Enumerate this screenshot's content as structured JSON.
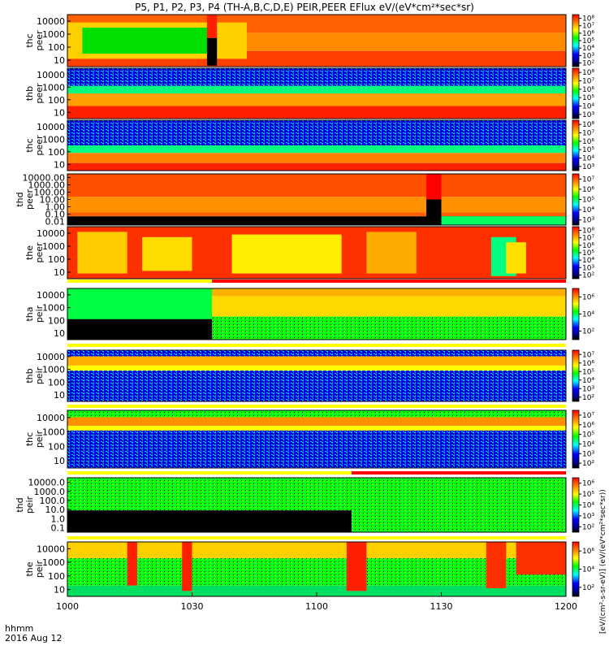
{
  "title": "P5, P1, P2, P3, P4 (TH-A,B,C,D,E) PEIR,PEER EFlux eV/(eV*cm²*sec*sr)",
  "footer": {
    "hhmm": "hhmm",
    "date": "2016 Aug 12"
  },
  "colorbar_unit": "[eV/(cm²-s-sr-eV)] (eV/(eV*cm²*sec*sr))",
  "colors": {
    "black": "#000000",
    "dark_blue": "#00008b",
    "blue": "#0000ff",
    "cyan": "#00ffff",
    "green": "#00ff00",
    "yellow": "#ffff00",
    "orange": "#ff8000",
    "red": "#ff0000",
    "bar_red": "#ff0000",
    "bar_yellow": "#ffff00"
  },
  "chart_data": {
    "type": "heatmap",
    "x_tick_labels": [
      "1000",
      "1030",
      "1100",
      "1130",
      "1200"
    ],
    "xlim": [
      "10:00",
      "12:00"
    ],
    "panels": [
      {
        "ylabel": [
          "thc",
          "peer"
        ],
        "y_ticks": [
          "10",
          "100",
          "1000",
          "10000"
        ],
        "colorbar_ticks": [
          "10²",
          "10³",
          "10⁴",
          "10⁵",
          "10⁶",
          "10⁷",
          "10⁸"
        ]
      },
      {
        "ylabel": [
          "thb",
          "peer"
        ],
        "y_ticks": [
          "10",
          "100",
          "1000",
          "10000"
        ],
        "colorbar_ticks": [
          "10³",
          "10⁴",
          "10⁵",
          "10⁶",
          "10⁷",
          "10⁸"
        ]
      },
      {
        "ylabel": [
          "thc",
          "peer"
        ],
        "y_ticks": [
          "10",
          "100",
          "1000",
          "10000"
        ],
        "colorbar_ticks": [
          "10³",
          "10⁴",
          "10⁵",
          "10⁶",
          "10⁷",
          "10⁸"
        ]
      },
      {
        "ylabel": [
          "thd",
          "peer"
        ],
        "y_ticks": [
          "0.01",
          "0.10",
          "1.00",
          "10.00",
          "100.00",
          "1000.00",
          "10000.00"
        ],
        "colorbar_ticks": [
          "10³",
          "10⁴",
          "10⁵",
          "10⁶",
          "10⁷"
        ]
      },
      {
        "ylabel": [
          "the",
          "peer"
        ],
        "y_ticks": [
          "10",
          "100",
          "1000",
          "10000"
        ],
        "colorbar_ticks": [
          "10²",
          "10³",
          "10⁴",
          "10⁵",
          "10⁶",
          "10⁷",
          "10⁸"
        ]
      },
      {
        "ylabel": [
          "tha",
          "peir"
        ],
        "y_ticks": [
          "10",
          "100",
          "1000",
          "10000"
        ],
        "colorbar_ticks": [
          "10²",
          "10⁴",
          "10⁶"
        ]
      },
      {
        "ylabel": [
          "thb",
          "peir"
        ],
        "y_ticks": [
          "10",
          "100",
          "1000",
          "10000"
        ],
        "colorbar_ticks": [
          "10²",
          "10³",
          "10⁴",
          "10⁵",
          "10⁶",
          "10⁷"
        ]
      },
      {
        "ylabel": [
          "thc",
          "peir"
        ],
        "y_ticks": [
          "10",
          "100",
          "1000",
          "10000"
        ],
        "colorbar_ticks": [
          "10²",
          "10³",
          "10⁴",
          "10⁵",
          "10⁶",
          "10⁷"
        ]
      },
      {
        "ylabel": [
          "thd",
          "peir"
        ],
        "y_ticks": [
          "0.1",
          "1.0",
          "10.0",
          "100.0",
          "1000.0",
          "10000.0"
        ],
        "colorbar_ticks": [
          "10²",
          "10³",
          "10⁴",
          "10⁵",
          "10⁶"
        ]
      },
      {
        "ylabel": [
          "the",
          "peir"
        ],
        "y_ticks": [
          "10",
          "100",
          "1000",
          "10000"
        ],
        "colorbar_ticks": [
          "10²",
          "10⁴",
          "10⁶"
        ]
      }
    ]
  }
}
